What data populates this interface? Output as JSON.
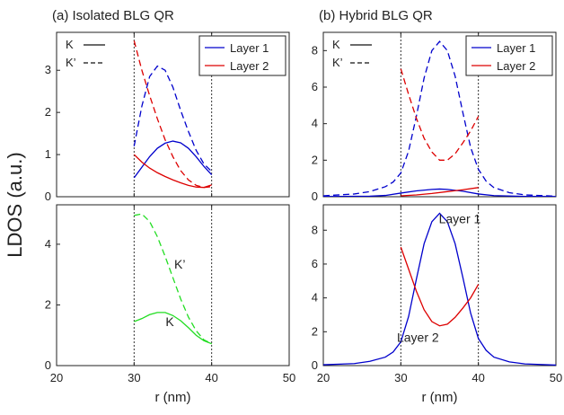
{
  "chart_data": [
    {
      "type": "line",
      "panel": "(a) Isolated BLG QR",
      "title": "(a) Isolated BLG QR",
      "xlabel": "r (nm)",
      "ylabel": "LDOS (a.u.)",
      "xlim": [
        20,
        50
      ],
      "xticks": [
        "20",
        "30",
        "40",
        "50"
      ],
      "ring_edges": [
        30,
        40
      ],
      "line_styles": {
        "K": "solid",
        "K'": "dashed"
      },
      "valley_legend": [
        "K",
        "K’"
      ],
      "legend": {
        "placement": "top-right",
        "entries": [
          "Layer 1",
          "Layer 2"
        ]
      },
      "top": {
        "ylim": [
          0,
          3.9
        ],
        "yticks": [
          "0",
          "1",
          "2",
          "3"
        ],
        "series": [
          {
            "name": "Layer 1",
            "valley": "K",
            "color": "#0000cc",
            "style": "solid",
            "x": [
              30,
              31,
              32,
              33,
              34,
              35,
              36,
              37,
              38,
              39,
              40
            ],
            "y": [
              0.45,
              0.7,
              0.95,
              1.15,
              1.27,
              1.32,
              1.28,
              1.15,
              0.95,
              0.72,
              0.52
            ]
          },
          {
            "name": "Layer 2",
            "valley": "K",
            "color": "#dd0000",
            "style": "solid",
            "x": [
              30,
              31,
              32,
              33,
              34,
              35,
              36,
              37,
              38,
              39,
              40
            ],
            "y": [
              1.0,
              0.82,
              0.68,
              0.57,
              0.48,
              0.4,
              0.33,
              0.27,
              0.23,
              0.22,
              0.28
            ]
          },
          {
            "name": "Layer 1",
            "valley": "K'",
            "color": "#0000cc",
            "style": "dashed",
            "x": [
              30,
              31,
              32,
              33,
              34,
              35,
              36,
              37,
              38,
              39,
              40
            ],
            "y": [
              1.2,
              2.15,
              2.85,
              3.1,
              3.0,
              2.6,
              2.05,
              1.55,
              1.1,
              0.78,
              0.6
            ]
          },
          {
            "name": "Layer 2",
            "valley": "K'",
            "color": "#dd0000",
            "style": "dashed",
            "x": [
              30,
              31,
              32,
              33,
              34,
              35,
              36,
              37,
              38,
              39,
              40
            ],
            "y": [
              3.7,
              3.0,
              2.4,
              1.85,
              1.35,
              0.95,
              0.62,
              0.4,
              0.27,
              0.22,
              0.24
            ]
          }
        ]
      },
      "bottom": {
        "ylim": [
          0,
          5.3
        ],
        "yticks": [
          "0",
          "2",
          "4"
        ],
        "series": [
          {
            "valley": "K'",
            "color": "#22dd22",
            "style": "dashed",
            "x": [
              30,
              31,
              32,
              33,
              34,
              35,
              36,
              37,
              38,
              39,
              40
            ],
            "y": [
              4.95,
              5.0,
              4.75,
              4.25,
              3.6,
              2.9,
              2.2,
              1.6,
              1.15,
              0.85,
              0.72
            ]
          },
          {
            "valley": "K",
            "color": "#22dd22",
            "style": "solid",
            "x": [
              30,
              31,
              32,
              33,
              34,
              35,
              36,
              37,
              38,
              39,
              40
            ],
            "y": [
              1.45,
              1.55,
              1.68,
              1.75,
              1.75,
              1.65,
              1.48,
              1.25,
              1.0,
              0.82,
              0.72
            ]
          }
        ],
        "annotations": [
          {
            "text": "K’",
            "x": 35.9,
            "y": 3.2
          },
          {
            "text": "K",
            "x": 34.6,
            "y": 1.3
          }
        ]
      }
    },
    {
      "type": "line",
      "panel": "(b) Hybrid BLG QR",
      "title": "(b) Hybrid BLG QR",
      "xlabel": "r (nm)",
      "xlim": [
        20,
        50
      ],
      "xticks": [
        "20",
        "30",
        "40",
        "50"
      ],
      "ring_edges": [
        30,
        40
      ],
      "line_styles": {
        "K": "solid",
        "K'": "dashed"
      },
      "valley_legend": [
        "K",
        "K’"
      ],
      "legend": {
        "placement": "top-right",
        "entries": [
          "Layer 1",
          "Layer 2"
        ]
      },
      "top": {
        "ylim": [
          0,
          9
        ],
        "yticks": [
          "0",
          "2",
          "4",
          "6",
          "8"
        ],
        "series": [
          {
            "name": "Layer 1",
            "valley": "K'",
            "color": "#0000cc",
            "style": "dashed",
            "x": [
              20,
              24,
              26,
              28,
              29,
              30,
              31,
              32,
              33,
              34,
              35,
              36,
              37,
              38,
              39,
              40,
              41,
              42,
              44,
              46,
              50
            ],
            "y": [
              0.05,
              0.15,
              0.28,
              0.55,
              0.8,
              1.3,
              2.5,
              4.4,
              6.5,
              8.0,
              8.5,
              8.0,
              6.6,
              4.6,
              2.7,
              1.5,
              0.85,
              0.5,
              0.22,
              0.1,
              0.03
            ]
          },
          {
            "name": "Layer 2",
            "valley": "K'",
            "color": "#dd0000",
            "style": "dashed",
            "x": [
              30,
              31,
              32,
              33,
              34,
              35,
              36,
              37,
              38,
              39,
              40
            ],
            "y": [
              7.0,
              5.6,
              4.3,
              3.2,
              2.45,
              2.0,
              2.0,
              2.35,
              2.95,
              3.6,
              4.4
            ]
          },
          {
            "name": "Layer 1",
            "valley": "K",
            "color": "#0000cc",
            "style": "solid",
            "x": [
              20,
              26,
              28,
              30,
              32,
              34,
              35,
              36,
              38,
              40,
              42,
              46,
              50
            ],
            "y": [
              0.01,
              0.03,
              0.07,
              0.2,
              0.32,
              0.4,
              0.42,
              0.4,
              0.3,
              0.15,
              0.06,
              0.02,
              0.01
            ]
          },
          {
            "name": "Layer 2",
            "valley": "K",
            "color": "#dd0000",
            "style": "solid",
            "x": [
              30,
              32,
              34,
              36,
              38,
              40
            ],
            "y": [
              0.05,
              0.1,
              0.18,
              0.28,
              0.38,
              0.5
            ]
          }
        ]
      },
      "bottom": {
        "ylim": [
          0,
          9.5
        ],
        "yticks": [
          "0",
          "2",
          "4",
          "6",
          "8"
        ],
        "series": [
          {
            "name": "Layer 1",
            "color": "#0000cc",
            "style": "solid",
            "x": [
              20,
              24,
              26,
              28,
              29,
              30,
              31,
              32,
              33,
              34,
              35,
              36,
              37,
              38,
              39,
              40,
              41,
              42,
              44,
              46,
              50
            ],
            "y": [
              0.05,
              0.12,
              0.25,
              0.5,
              0.8,
              1.4,
              2.9,
              5.1,
              7.2,
              8.5,
              9.0,
              8.5,
              7.2,
              5.2,
              3.1,
              1.6,
              0.9,
              0.5,
              0.22,
              0.1,
              0.03
            ]
          },
          {
            "name": "Layer 2",
            "color": "#dd0000",
            "style": "solid",
            "x": [
              30,
              31,
              32,
              33,
              34,
              35,
              36,
              37,
              38,
              39,
              40
            ],
            "y": [
              7.0,
              5.7,
              4.4,
              3.3,
              2.6,
              2.35,
              2.45,
              2.85,
              3.4,
              4.0,
              4.8
            ]
          }
        ],
        "annotations": [
          {
            "text": "Layer 1",
            "x": 37.6,
            "y": 8.4,
            "color": "#0000cc"
          },
          {
            "text": "Layer 2",
            "x": 32.2,
            "y": 1.4,
            "color": "#dd0000"
          }
        ]
      }
    }
  ]
}
